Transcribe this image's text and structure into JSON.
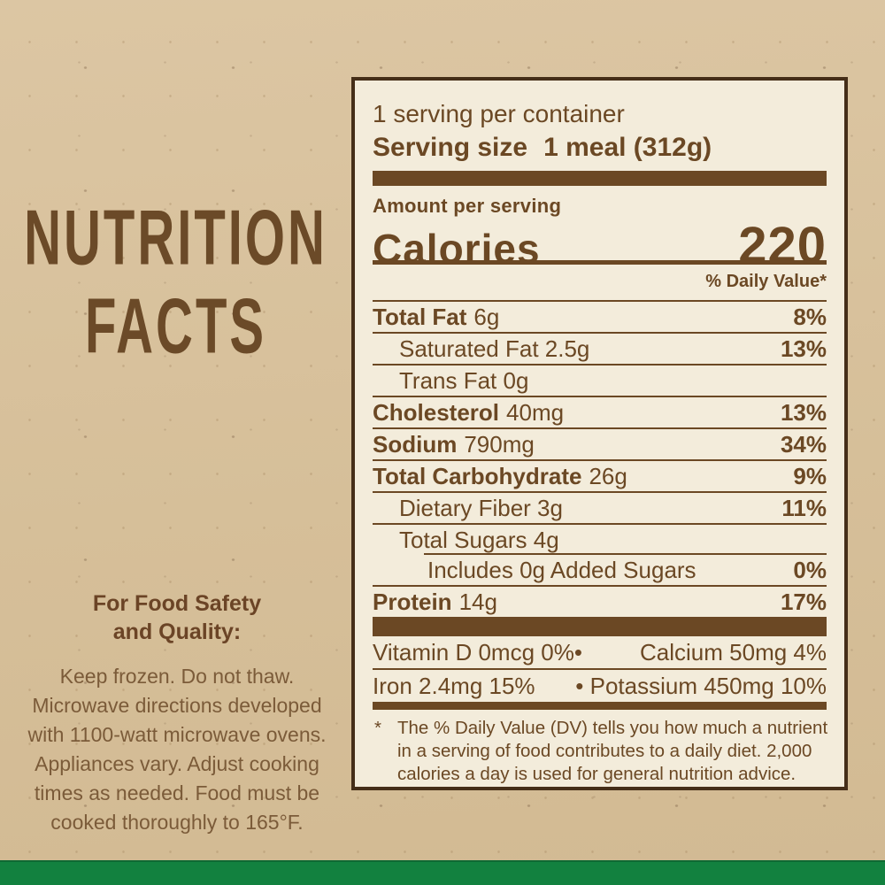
{
  "colors": {
    "kraft_background": "#d8c19c",
    "panel_background": "#f3ecdb",
    "label_brown": "#6b4824",
    "border_brown": "#452e18",
    "green_stripe": "#12813f"
  },
  "headline": {
    "line1": "NUTRITION",
    "line2": "FACTS"
  },
  "food_safety": {
    "heading_line1": "For Food Safety",
    "heading_line2": "and Quality:",
    "lines": [
      "Keep frozen. Do not thaw.",
      "Microwave directions developed",
      "with 1100-watt microwave ovens.",
      "Appliances vary. Adjust cooking",
      "times as needed. Food must be",
      "cooked thoroughly to 165°F."
    ]
  },
  "panel": {
    "servings_per_container": "1 serving per container",
    "serving_size_label": "Serving size",
    "serving_size_value": "1 meal (312g)",
    "amount_per_serving_label": "Amount per serving",
    "calories_label": "Calories",
    "calories_value": "220",
    "daily_value_header": "% Daily Value*",
    "rows": [
      {
        "strong": "Total Fat",
        "text": "6g",
        "dv": "8%"
      },
      {
        "strong": "",
        "text": "Saturated Fat 2.5g",
        "dv": "13%"
      },
      {
        "strong": "",
        "text": "Trans Fat 0g",
        "dv": ""
      },
      {
        "strong": "Cholesterol",
        "text": "40mg",
        "dv": "13%"
      },
      {
        "strong": "Sodium",
        "text": "790mg",
        "dv": "34%"
      },
      {
        "strong": "Total Carbohydrate",
        "text": "26g",
        "dv": "9%"
      },
      {
        "strong": "",
        "text": "Dietary Fiber 3g",
        "dv": "11%"
      },
      {
        "strong": "",
        "text": "Total Sugars 4g",
        "dv": ""
      },
      {
        "strong": "",
        "text": "Includes 0g Added Sugars",
        "dv": "0%"
      },
      {
        "strong": "Protein",
        "text": "14g",
        "dv": "17%"
      }
    ],
    "micronutrients": {
      "row1_left": "Vitamin D 0mcg 0%•",
      "row1_right": "Calcium 50mg 4%",
      "row2_left": "Iron 2.4mg 15%",
      "row2_right": "• Potassium 450mg 10%"
    },
    "footnote_marker": "*",
    "footnote_lines": [
      "The % Daily Value (DV) tells you how much a nutrient",
      "in a serving of food contributes to a daily diet. 2,000",
      "calories a day is used for general nutrition advice."
    ]
  }
}
